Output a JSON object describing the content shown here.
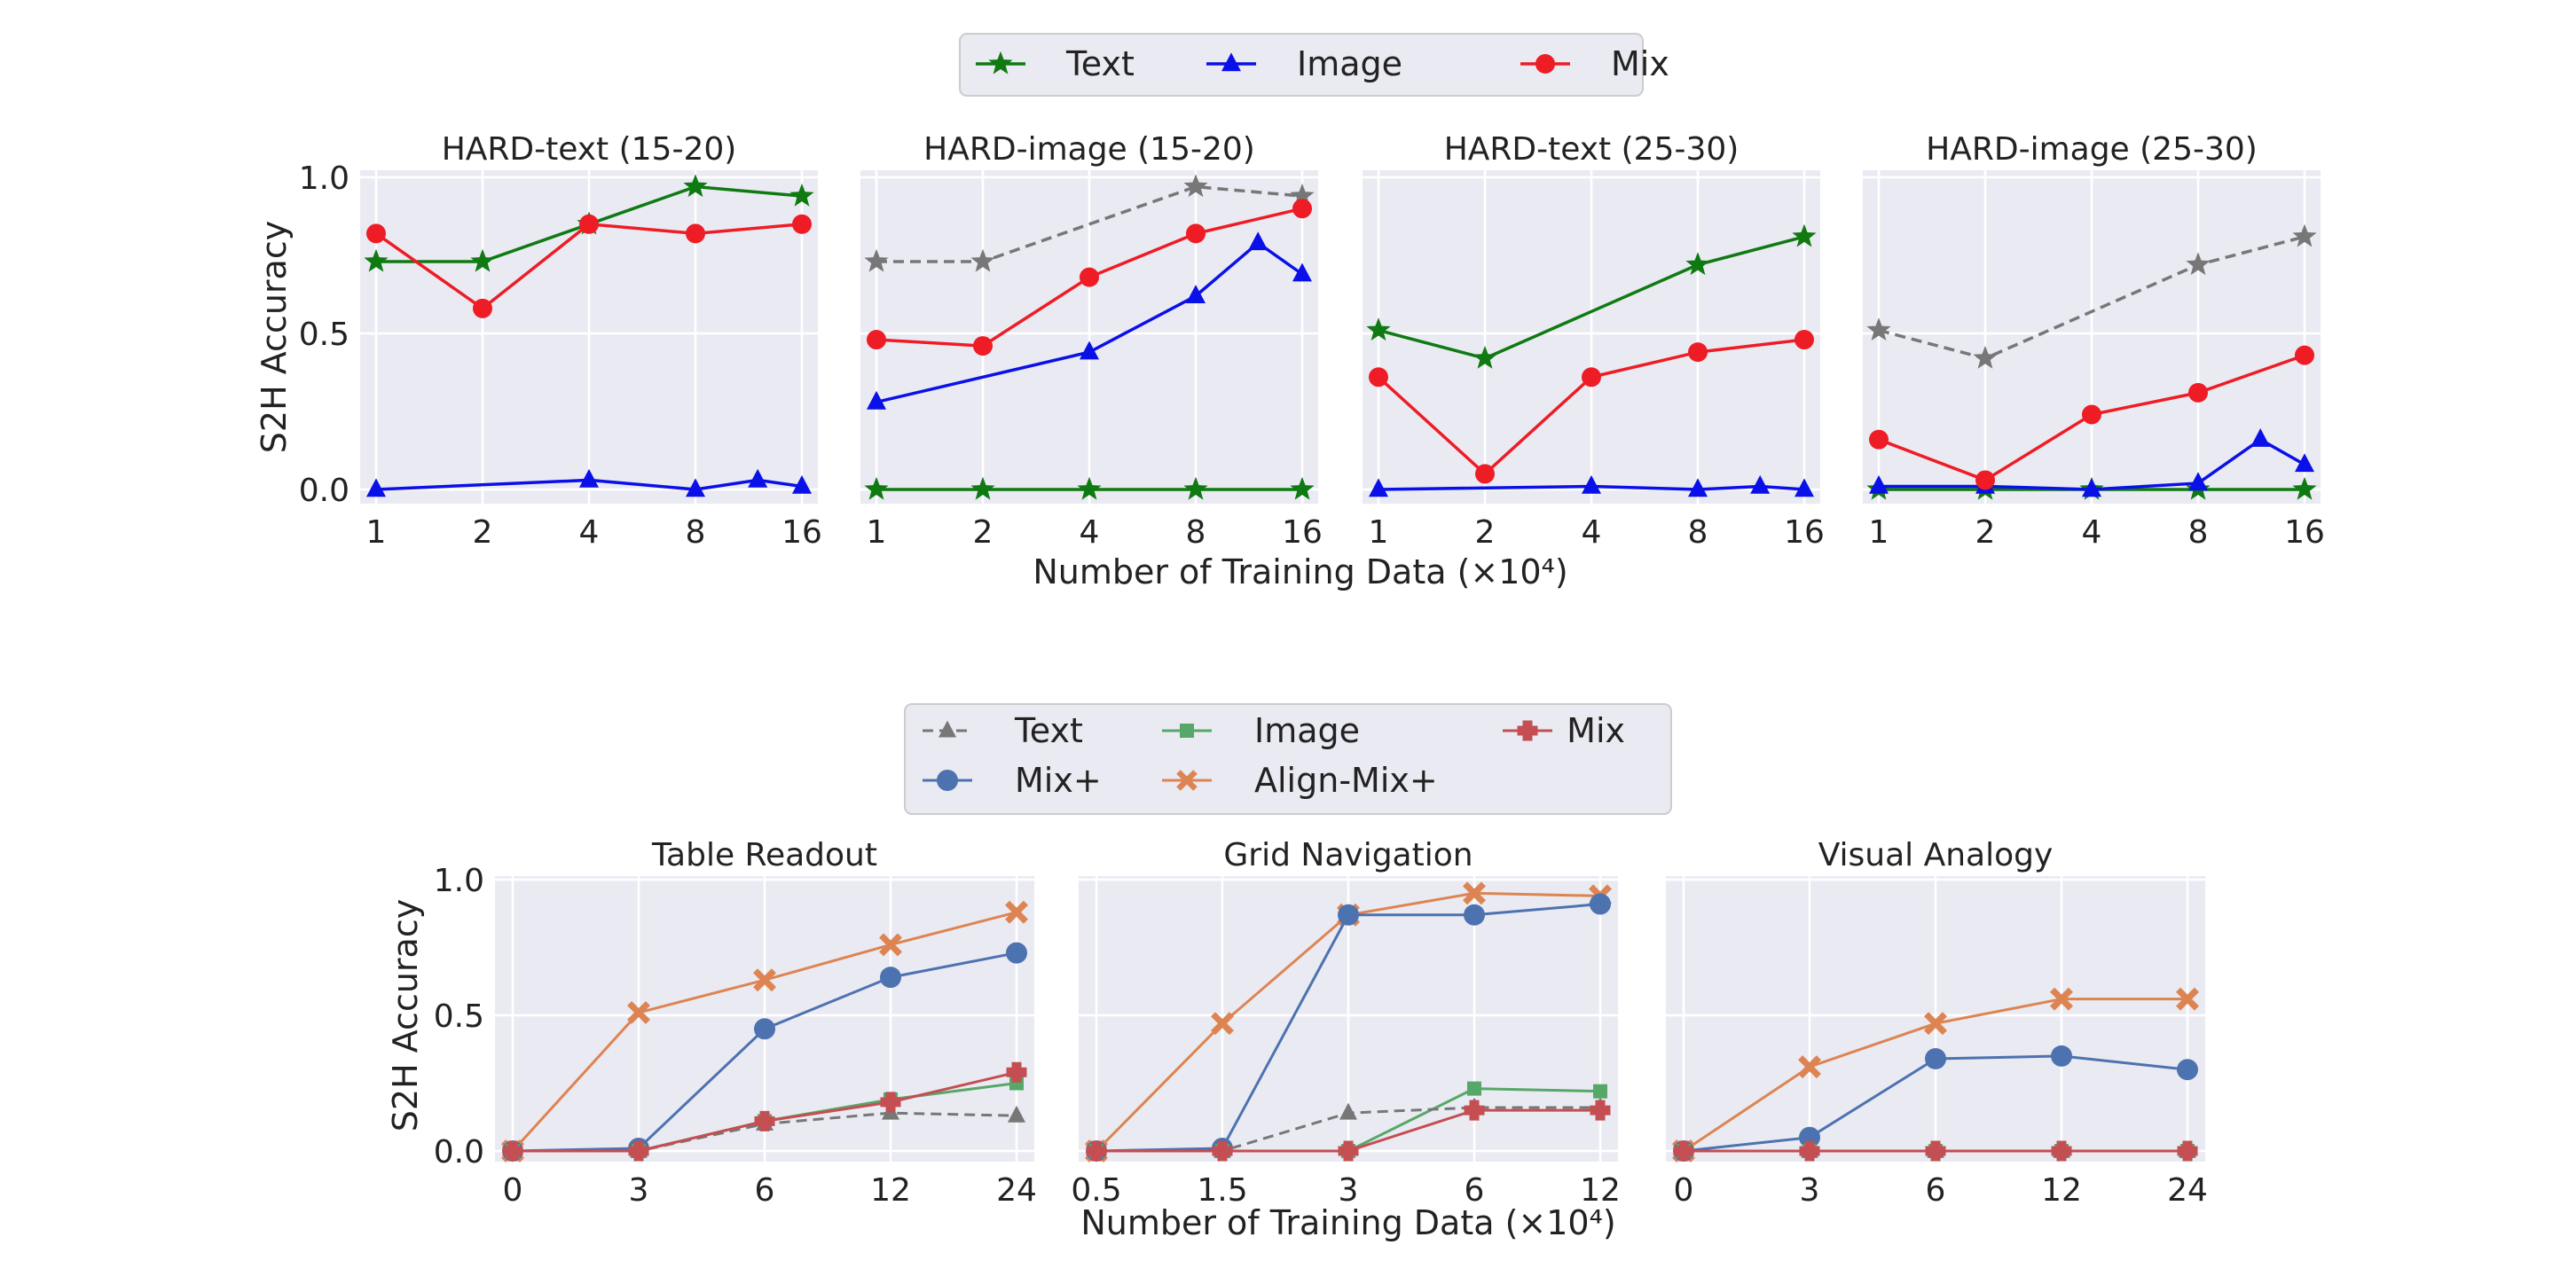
{
  "figure": {
    "top_legend": [
      {
        "label": "Text",
        "color": "#0f7a12",
        "marker": "star"
      },
      {
        "label": "Image",
        "color": "#0a10e8",
        "marker": "triangle"
      },
      {
        "label": "Mix",
        "color": "#ee1c25",
        "marker": "circle"
      }
    ],
    "top_xlabel": "Number of Training Data (×10⁴)",
    "top_ylabel": "S2H Accuracy",
    "bottom_legend": [
      {
        "label": "Text",
        "color": "#777777",
        "marker": "triangle",
        "dashed": true
      },
      {
        "label": "Image",
        "color": "#55a868",
        "marker": "square"
      },
      {
        "label": "Mix",
        "color": "#c44e52",
        "marker": "plus"
      },
      {
        "label": "Mix+",
        "color": "#4c72b0",
        "marker": "circle"
      },
      {
        "label": "Align-Mix+",
        "color": "#dd8452",
        "marker": "x"
      }
    ],
    "bottom_xlabel": "Number of Training Data (×10⁴)",
    "bottom_ylabel": "S2H Accuracy"
  },
  "chart_data": [
    {
      "type": "line",
      "title": "HARD-text (15-20)",
      "x_ticks": [
        "1",
        "2",
        "4",
        "8",
        "16"
      ],
      "x_scale": "log2",
      "ylim": [
        0,
        1
      ],
      "y_ticks": [
        "0.0",
        "0.5",
        "1.0"
      ],
      "grid": true,
      "series": [
        {
          "name": "Text",
          "x": [
            1,
            2,
            4,
            8,
            16
          ],
          "values": [
            0.73,
            0.73,
            0.85,
            0.97,
            0.94
          ]
        },
        {
          "name": "Image",
          "x": [
            1,
            4,
            8,
            12,
            16
          ],
          "values": [
            0.0,
            0.03,
            0.0,
            0.03,
            0.01
          ]
        },
        {
          "name": "Mix",
          "x": [
            1,
            2,
            4,
            8,
            16
          ],
          "values": [
            0.82,
            0.58,
            0.85,
            0.82,
            0.85
          ]
        }
      ]
    },
    {
      "type": "line",
      "title": "HARD-image (15-20)",
      "x_ticks": [
        "1",
        "2",
        "4",
        "8",
        "16"
      ],
      "x_scale": "log2",
      "ylim": [
        0,
        1
      ],
      "grid": true,
      "series": [
        {
          "name": "Text",
          "x": [
            1,
            2,
            4,
            8,
            16
          ],
          "values": [
            0.0,
            0.0,
            0.0,
            0.0,
            0.0
          ]
        },
        {
          "name": "Image",
          "x": [
            1,
            4,
            8,
            12,
            16
          ],
          "values": [
            0.28,
            0.44,
            0.62,
            0.79,
            0.69
          ]
        },
        {
          "name": "Mix",
          "x": [
            1,
            2,
            4,
            8,
            16
          ],
          "values": [
            0.48,
            0.46,
            0.68,
            0.82,
            0.9
          ]
        },
        {
          "name": "",
          "x": [
            1,
            2,
            8,
            16
          ],
          "values": [
            0.73,
            0.73,
            0.97,
            0.94
          ],
          "style": "dashed-reference"
        }
      ]
    },
    {
      "type": "line",
      "title": "HARD-text (25-30)",
      "x_ticks": [
        "1",
        "2",
        "4",
        "8",
        "16"
      ],
      "x_scale": "log2",
      "ylim": [
        0,
        1
      ],
      "grid": true,
      "series": [
        {
          "name": "Text",
          "x": [
            1,
            2,
            8,
            16
          ],
          "values": [
            0.51,
            0.42,
            0.72,
            0.81
          ]
        },
        {
          "name": "Image",
          "x": [
            1,
            4,
            8,
            12,
            16
          ],
          "values": [
            0.0,
            0.01,
            0.0,
            0.01,
            0.0
          ]
        },
        {
          "name": "Mix",
          "x": [
            1,
            2,
            4,
            8,
            16
          ],
          "values": [
            0.36,
            0.05,
            0.36,
            0.44,
            0.48
          ]
        }
      ]
    },
    {
      "type": "line",
      "title": "HARD-image (25-30)",
      "x_ticks": [
        "1",
        "2",
        "4",
        "8",
        "16"
      ],
      "x_scale": "log2",
      "ylim": [
        0,
        1
      ],
      "grid": true,
      "series": [
        {
          "name": "Text",
          "x": [
            1,
            2,
            4,
            8,
            16
          ],
          "values": [
            0.0,
            0.0,
            0.0,
            0.0,
            0.0
          ]
        },
        {
          "name": "Image",
          "x": [
            1,
            2,
            4,
            8,
            12,
            16
          ],
          "values": [
            0.01,
            0.01,
            0.0,
            0.02,
            0.16,
            0.08
          ]
        },
        {
          "name": "Mix",
          "x": [
            1,
            2,
            4,
            8,
            16
          ],
          "values": [
            0.16,
            0.03,
            0.24,
            0.31,
            0.43
          ]
        },
        {
          "name": "",
          "x": [
            1,
            2,
            8,
            16
          ],
          "values": [
            0.51,
            0.42,
            0.72,
            0.81
          ],
          "style": "dashed-reference"
        }
      ]
    },
    {
      "type": "line",
      "title": "Table Readout",
      "x_ticks": [
        "0",
        "3",
        "6",
        "12",
        "24"
      ],
      "ylim": [
        0,
        1
      ],
      "y_ticks": [
        "0.0",
        "0.5",
        "1.0"
      ],
      "grid": true,
      "series": [
        {
          "name": "Text",
          "x": [
            "0",
            "3",
            "6",
            "12",
            "24"
          ],
          "values": [
            0.0,
            0.0,
            0.1,
            0.14,
            0.13
          ]
        },
        {
          "name": "Image",
          "x": [
            "0",
            "3",
            "6",
            "12",
            "24"
          ],
          "values": [
            0.0,
            0.0,
            0.11,
            0.19,
            0.25
          ]
        },
        {
          "name": "Mix",
          "x": [
            "0",
            "3",
            "6",
            "12",
            "24"
          ],
          "values": [
            0.0,
            0.0,
            0.11,
            0.18,
            0.29
          ]
        },
        {
          "name": "Mix+",
          "x": [
            "0",
            "3",
            "6",
            "12",
            "24"
          ],
          "values": [
            0.0,
            0.01,
            0.45,
            0.64,
            0.73
          ]
        },
        {
          "name": "Align-Mix+",
          "x": [
            "0",
            "3",
            "6",
            "12",
            "24"
          ],
          "values": [
            0.0,
            0.51,
            0.63,
            0.76,
            0.88
          ]
        }
      ]
    },
    {
      "type": "line",
      "title": "Grid Navigation",
      "x_ticks": [
        "0.5",
        "1.5",
        "3",
        "6",
        "12"
      ],
      "ylim": [
        0,
        1
      ],
      "grid": true,
      "series": [
        {
          "name": "Text",
          "x": [
            "0.5",
            "1.5",
            "3",
            "6",
            "12"
          ],
          "values": [
            0.0,
            0.0,
            0.14,
            0.16,
            0.16
          ]
        },
        {
          "name": "Image",
          "x": [
            "0.5",
            "1.5",
            "3",
            "6",
            "12"
          ],
          "values": [
            0.0,
            0.0,
            0.0,
            0.23,
            0.22
          ]
        },
        {
          "name": "Mix",
          "x": [
            "0.5",
            "1.5",
            "3",
            "6",
            "12"
          ],
          "values": [
            0.0,
            0.0,
            0.0,
            0.15,
            0.15
          ]
        },
        {
          "name": "Mix+",
          "x": [
            "0.5",
            "1.5",
            "3",
            "6",
            "12"
          ],
          "values": [
            0.0,
            0.01,
            0.87,
            0.87,
            0.91
          ]
        },
        {
          "name": "Align-Mix+",
          "x": [
            "0.5",
            "1.5",
            "3",
            "6",
            "12"
          ],
          "values": [
            0.0,
            0.47,
            0.87,
            0.95,
            0.94
          ]
        }
      ]
    },
    {
      "type": "line",
      "title": "Visual Analogy",
      "x_ticks": [
        "0",
        "3",
        "6",
        "12",
        "24"
      ],
      "ylim": [
        0,
        1
      ],
      "grid": true,
      "series": [
        {
          "name": "Text",
          "x": [
            "0",
            "3",
            "6",
            "12",
            "24"
          ],
          "values": [
            0.0,
            0.0,
            0.0,
            0.0,
            0.0
          ]
        },
        {
          "name": "Image",
          "x": [
            "0",
            "3",
            "6",
            "12",
            "24"
          ],
          "values": [
            0.0,
            0.0,
            0.0,
            0.0,
            0.0
          ]
        },
        {
          "name": "Mix",
          "x": [
            "0",
            "3",
            "6",
            "12",
            "24"
          ],
          "values": [
            0.0,
            0.0,
            0.0,
            0.0,
            0.0
          ]
        },
        {
          "name": "Mix+",
          "x": [
            "0",
            "3",
            "6",
            "12",
            "24"
          ],
          "values": [
            0.0,
            0.05,
            0.34,
            0.35,
            0.3
          ]
        },
        {
          "name": "Align-Mix+",
          "x": [
            "0",
            "3",
            "6",
            "12",
            "24"
          ],
          "values": [
            0.0,
            0.31,
            0.47,
            0.56,
            0.56
          ]
        }
      ]
    }
  ]
}
